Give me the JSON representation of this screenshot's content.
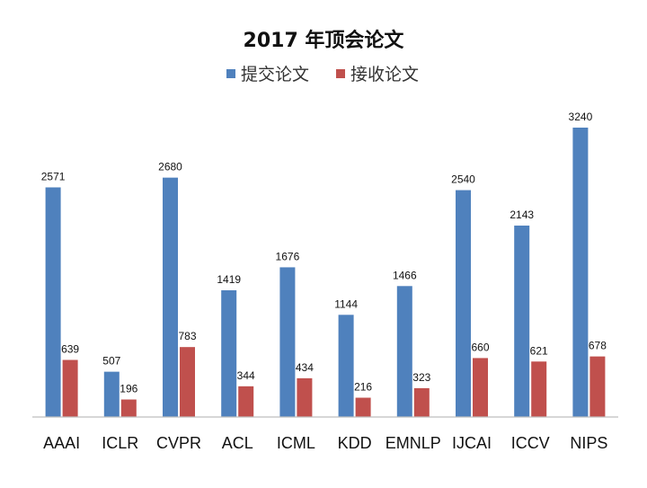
{
  "chart_data": {
    "type": "bar",
    "title": "2017 年顶会论文",
    "categories": [
      "AAAI",
      "ICLR",
      "CVPR",
      "ACL",
      "ICML",
      "KDD",
      "EMNLP",
      "IJCAI",
      "ICCV",
      "NIPS"
    ],
    "series": [
      {
        "name": "提交论文",
        "color": "#4f81bd",
        "values": [
          2571,
          507,
          2680,
          1419,
          1676,
          1144,
          1466,
          2540,
          2143,
          3240
        ]
      },
      {
        "name": "接收论文",
        "color": "#c0504d",
        "values": [
          639,
          196,
          783,
          344,
          434,
          216,
          323,
          660,
          621,
          678
        ]
      }
    ],
    "ylim": [
      0,
      3240
    ],
    "xlabel": "",
    "ylabel": "",
    "grid": false,
    "legend_position": "top-center",
    "data_labels": true
  }
}
